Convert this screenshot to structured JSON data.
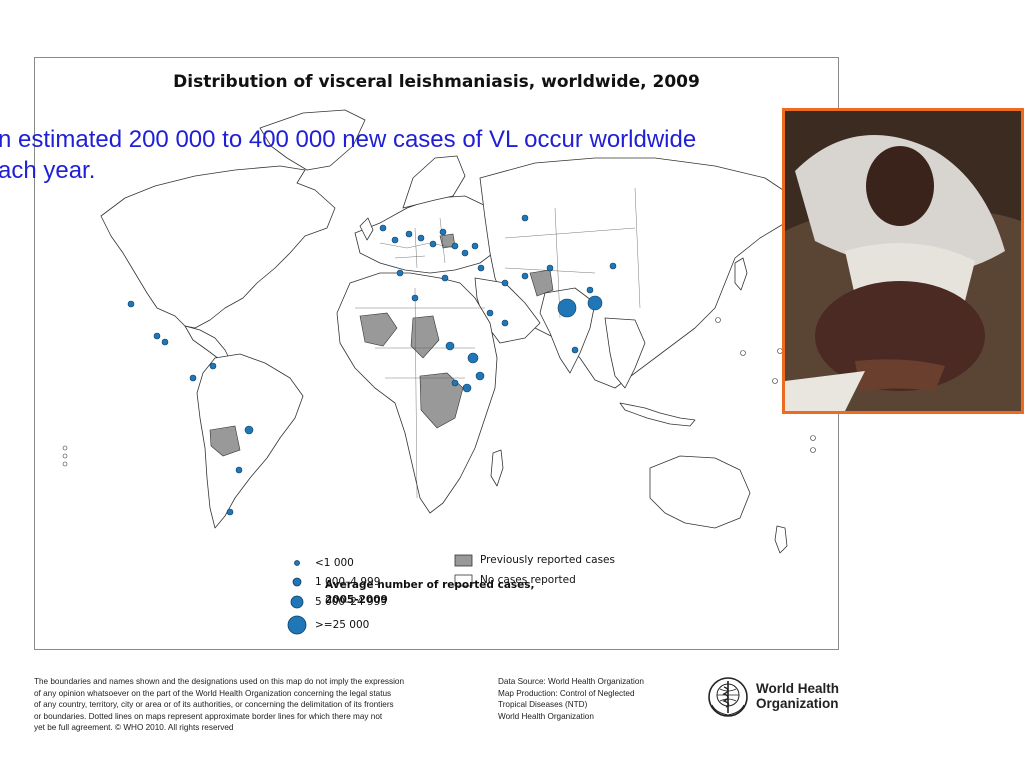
{
  "map": {
    "title": "Distribution of visceral leishmaniasis, worldwide, 2009",
    "legend": {
      "title": "Average number of reported cases, 2005-2009",
      "classes": [
        {
          "label": "<1 000"
        },
        {
          "label": "1 000–4 999"
        },
        {
          "label": "5 000–24 999"
        },
        {
          "label": ">=25 000"
        }
      ],
      "status": [
        {
          "label": "Previously reported cases",
          "color": "#999999"
        },
        {
          "label": "No cases reported",
          "color": "#ffffff"
        }
      ],
      "symbol_color": "#1f77b8"
    }
  },
  "overlay": {
    "line1": "n estimated 200 000 to 400 000 new cases of VL occur worldwide",
    "line2": "ach year.",
    "color": "#1f1fd6"
  },
  "photo": {
    "border_color": "#ee6a1e"
  },
  "footer": {
    "disclaimer": [
      "The boundaries and names shown and the designations used on this map do not imply the expression",
      "of any opinion whatsoever on the part of the World Health Organization concerning the legal status",
      "of any country, territory, city or area or of its authorities, or concerning the delimitation of its frontiers",
      "or boundaries. Dotted lines on maps represent approximate border lines for which there may not",
      "yet be full agreement. © WHO 2010. All rights reserved"
    ],
    "source": [
      "Data Source: World Health Organization",
      "Map Production: Control of Neglected",
      "Tropical Diseases (NTD)",
      "World Health Organization"
    ],
    "org_name_line1": "World Health",
    "org_name_line2": "Organization"
  }
}
